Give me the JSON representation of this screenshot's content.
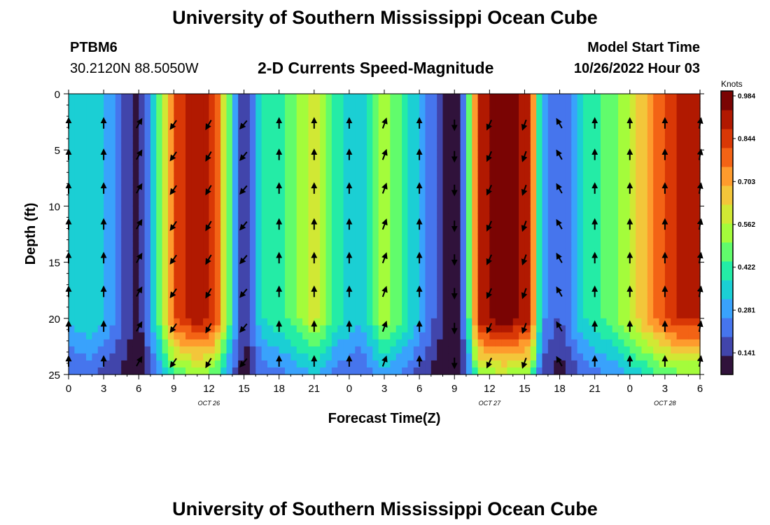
{
  "page": {
    "title": "University of Southern Mississippi Ocean Cube",
    "station": "PTBM6",
    "coordinates": "30.2120N  88.5050W",
    "subtitle": "2-D Currents Speed-Magnitude",
    "model_label": "Model Start Time",
    "model_time": "10/26/2022 Hour 03",
    "footer_title": "University of Southern Mississippi Ocean Cube"
  },
  "chart_data": {
    "type": "heatmap",
    "title": "2-D Currents Speed-Magnitude",
    "xlabel": "Forecast Time(Z)",
    "ylabel": "Depth (ft)",
    "x_tick_labels": [
      "0",
      "3",
      "6",
      "9",
      "12",
      "15",
      "18",
      "21",
      "0",
      "3",
      "6",
      "9",
      "12",
      "15",
      "18",
      "21",
      "0",
      "3",
      "6"
    ],
    "x_tick_hours": [
      0,
      3,
      6,
      9,
      12,
      15,
      18,
      21,
      24,
      27,
      30,
      33,
      36,
      39,
      42,
      45,
      48,
      51,
      54
    ],
    "date_labels": [
      {
        "label": "OCT 26",
        "hour": 12
      },
      {
        "label": "OCT 27",
        "hour": 36
      },
      {
        "label": "OCT 28",
        "hour": 51
      }
    ],
    "xlim_hours": [
      0,
      54
    ],
    "y_ticks": [
      0,
      5,
      10,
      15,
      20,
      25
    ],
    "ylim_ft": [
      0,
      25
    ],
    "y_direction": "depth increases downward",
    "colorbar": {
      "units": "Knots",
      "ticks": [
        "0.984",
        "0.844",
        "0.703",
        "0.562",
        "0.422",
        "0.281",
        "0.141"
      ],
      "range": [
        0.07,
        1.0
      ],
      "colors": [
        "#30123b",
        "#4145ab",
        "#4675ed",
        "#39a2fc",
        "#1bcfd4",
        "#24eca6",
        "#61fc6c",
        "#a4fc3b",
        "#d1e834",
        "#f3c63a",
        "#fe9b2d",
        "#f36315",
        "#d93806",
        "#b11901",
        "#7a0403"
      ]
    },
    "speed_profile_knots": [
      {
        "hour": 0,
        "speed": 0.33
      },
      {
        "hour": 2,
        "speed": 0.38
      },
      {
        "hour": 4,
        "speed": 0.25
      },
      {
        "hour": 6,
        "speed": 0.1
      },
      {
        "hour": 7.5,
        "speed": 0.4
      },
      {
        "hour": 9,
        "speed": 0.82
      },
      {
        "hour": 11,
        "speed": 0.93
      },
      {
        "hour": 12.5,
        "speed": 0.86
      },
      {
        "hour": 14,
        "speed": 0.38
      },
      {
        "hour": 15,
        "speed": 0.13
      },
      {
        "hour": 16.5,
        "speed": 0.38
      },
      {
        "hour": 19,
        "speed": 0.46
      },
      {
        "hour": 21,
        "speed": 0.6
      },
      {
        "hour": 23,
        "speed": 0.4
      },
      {
        "hour": 25,
        "speed": 0.33
      },
      {
        "hour": 27,
        "speed": 0.55
      },
      {
        "hour": 29,
        "speed": 0.4
      },
      {
        "hour": 31,
        "speed": 0.22
      },
      {
        "hour": 33,
        "speed": 0.05
      },
      {
        "hour": 34,
        "speed": 0.3
      },
      {
        "hour": 35,
        "speed": 0.9
      },
      {
        "hour": 37,
        "speed": 1.0
      },
      {
        "hour": 39.5,
        "speed": 0.9
      },
      {
        "hour": 40.5,
        "speed": 0.28
      },
      {
        "hour": 42,
        "speed": 0.18
      },
      {
        "hour": 44,
        "speed": 0.38
      },
      {
        "hour": 47,
        "speed": 0.5
      },
      {
        "hour": 50,
        "speed": 0.75
      },
      {
        "hour": 52,
        "speed": 0.88
      },
      {
        "hour": 54,
        "speed": 0.88
      }
    ],
    "vector_hours": [
      0,
      3,
      6,
      9,
      12,
      15,
      18,
      21,
      24,
      27,
      30,
      33,
      36,
      39,
      42,
      45,
      48,
      51,
      54
    ],
    "vector_depths_ft": [
      2.7,
      5.5,
      8.5,
      11.7,
      14.7,
      17.7,
      20.8,
      23.9
    ],
    "vector_direction_deg": [
      90,
      90,
      60,
      235,
      240,
      230,
      90,
      90,
      90,
      70,
      90,
      270,
      245,
      250,
      120,
      90,
      90,
      90,
      80
    ],
    "vector_note": "direction in degrees, 0 = east (right), 90 = north (up)"
  }
}
